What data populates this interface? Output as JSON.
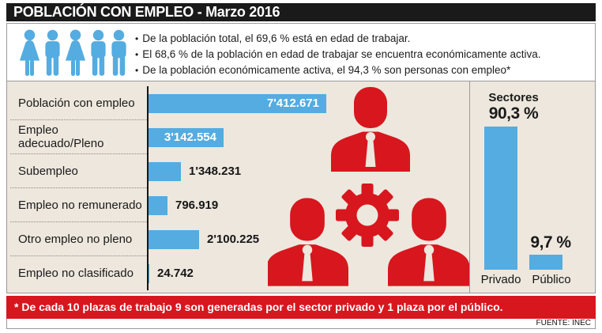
{
  "header": {
    "title": "POBLACIÓN CON EMPLEO - Marzo 2016"
  },
  "intro": {
    "icons": [
      "woman",
      "man",
      "woman",
      "man",
      "man"
    ],
    "bullet_char": "•",
    "bullets": [
      "De la población total, el 69,6 % está en edad de trabajar.",
      "El 68,6 % de la población en edad de trabajar se encuentra económicamente activa.",
      "De la población económicamente activa, el 94,3 % son personas con empleo*"
    ]
  },
  "chart_data": [
    {
      "type": "bar",
      "orientation": "horizontal",
      "title": "",
      "categories": [
        "Población con empleo",
        "Empleo adecuado/Pleno",
        "Subempleo",
        "Empleo no remunerado",
        "Otro empleo no pleno",
        "Empleo no clasificado"
      ],
      "values": [
        7412671,
        3142554,
        1348231,
        796919,
        2100225,
        24742
      ],
      "value_labels": [
        "7'412.671",
        "3'142.554",
        "1'348.231",
        "796.919",
        "2'100.225",
        "24.742"
      ],
      "xlim": [
        0,
        7412671
      ],
      "grid": false,
      "legend": "none"
    },
    {
      "type": "bar",
      "orientation": "vertical",
      "title": "Sectores",
      "categories": [
        "Privado",
        "Público"
      ],
      "values": [
        90.3,
        9.7
      ],
      "value_labels": [
        "90,3 %",
        "9,7 %"
      ],
      "ylim": [
        0,
        100
      ],
      "grid": false,
      "legend": "none"
    }
  ],
  "center_graphic": {
    "icons": [
      "worker",
      "worker",
      "worker",
      "gear"
    ]
  },
  "footer": {
    "note": "* De cada 10 plazas de trabajo 9 son generadas por el sector privado y 1 plaza por el público.",
    "source": "FUENTE: INEC"
  },
  "colors": {
    "title_bg": "#1A1A1A",
    "bar_blue": "#54ACE0",
    "red": "#D8161E",
    "panel_bg": "#EDE7DD",
    "border": "#999999"
  }
}
